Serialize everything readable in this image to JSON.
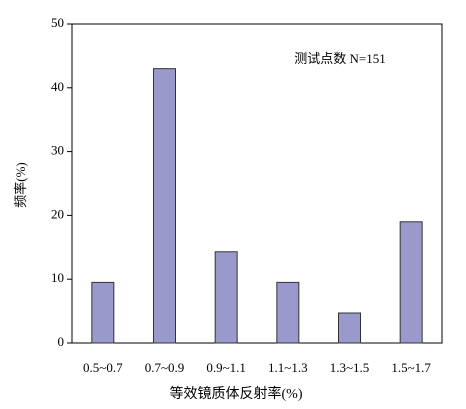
{
  "chart_data": {
    "type": "bar",
    "annotation": "测试点数 N=151",
    "xlabel": "等效镜质体反射率(%)",
    "ylabel": "频率(%)",
    "categories": [
      "0.5~0.7",
      "0.7~0.9",
      "0.9~1.1",
      "1.1~1.3",
      "1.3~1.5",
      "1.5~1.7"
    ],
    "values": [
      9.5,
      43,
      14.3,
      9.5,
      4.7,
      19
    ],
    "color": "#9999cc",
    "ylim": [
      0,
      50
    ],
    "yticks": [
      0,
      10,
      20,
      30,
      40,
      50
    ],
    "grid": false
  }
}
